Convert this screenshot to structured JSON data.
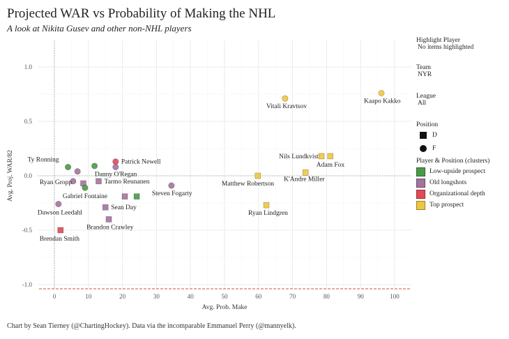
{
  "chart_data": {
    "type": "scatter",
    "title": "Projected WAR vs Probability of Making the NHL",
    "subtitle": "A look at Nikita Gusev and other non-NHL players",
    "xlabel": "Avg. Prob. Make",
    "ylabel": "Avg. Proj. WAR/82",
    "xlim": [
      -5,
      105
    ],
    "ylim": [
      -1.05,
      1.22
    ],
    "x_ticks": [
      0,
      10,
      20,
      30,
      40,
      50,
      60,
      70,
      80,
      90,
      100
    ],
    "x_tick_labels": [
      "0",
      "10",
      "20",
      "30",
      "40",
      "50",
      "60",
      "70",
      "80",
      "90",
      "100"
    ],
    "y_ticks": [
      1.0,
      0.5,
      0.0,
      -0.5,
      -1.0
    ],
    "y_tick_labels": [
      "1.0",
      "0.5",
      "0.0",
      "-0.5",
      "-1.0"
    ],
    "grid": true,
    "reference_lines": {
      "x": 0,
      "y": 0,
      "style": "dotted"
    },
    "legend_position": "right",
    "clusters": [
      {
        "name": "Low-upside prospect",
        "color": "#4a9a45"
      },
      {
        "name": "Old longshots",
        "color": "#a4739f"
      },
      {
        "name": "Organizational depth",
        "color": "#e04a55"
      },
      {
        "name": "Top prospect",
        "color": "#eec640"
      }
    ],
    "positions": [
      {
        "code": "D",
        "shape": "square"
      },
      {
        "code": "F",
        "shape": "circle"
      }
    ],
    "points": [
      {
        "label": "Ty Ronning",
        "x": 4,
        "y": 0.08,
        "position": "F",
        "cluster": "Low-upside prospect"
      },
      {
        "label": "",
        "x": 6.8,
        "y": 0.04,
        "position": "F",
        "cluster": "Old longshots"
      },
      {
        "label": "",
        "x": 11.8,
        "y": 0.09,
        "position": "F",
        "cluster": "Low-upside prospect"
      },
      {
        "label": "Patrick Newell",
        "x": 18,
        "y": 0.13,
        "position": "F",
        "cluster": "Organizational depth"
      },
      {
        "label": "Danny O'Regan",
        "x": 18,
        "y": 0.08,
        "position": "F",
        "cluster": "Old longshots"
      },
      {
        "label": "Ryan Gropp",
        "x": 5.5,
        "y": -0.05,
        "position": "F",
        "cluster": "Old longshots"
      },
      {
        "label": "",
        "x": 8.5,
        "y": -0.07,
        "position": "D",
        "cluster": "Old longshots"
      },
      {
        "label": "Gabriel Fontaine",
        "x": 9,
        "y": -0.11,
        "position": "F",
        "cluster": "Low-upside prospect"
      },
      {
        "label": "Tarmo Reunanen",
        "x": 13,
        "y": -0.05,
        "position": "D",
        "cluster": "Old longshots"
      },
      {
        "label": "",
        "x": 20.7,
        "y": -0.19,
        "position": "D",
        "cluster": "Old longshots"
      },
      {
        "label": "",
        "x": 24.2,
        "y": -0.19,
        "position": "D",
        "cluster": "Low-upside prospect"
      },
      {
        "label": "Steven Fogarty",
        "x": 34.4,
        "y": -0.09,
        "position": "F",
        "cluster": "Old longshots"
      },
      {
        "label": "Sean Day",
        "x": 15,
        "y": -0.29,
        "position": "D",
        "cluster": "Old longshots"
      },
      {
        "label": "Brandon Crawley",
        "x": 16,
        "y": -0.4,
        "position": "D",
        "cluster": "Old longshots"
      },
      {
        "label": "Dawson Leedahl",
        "x": 1.2,
        "y": -0.26,
        "position": "F",
        "cluster": "Old longshots"
      },
      {
        "label": "Brendan Smith",
        "x": 1.8,
        "y": -0.5,
        "position": "D",
        "cluster": "Organizational depth"
      },
      {
        "label": "Vitali Kravtsov",
        "x": 67.8,
        "y": 0.71,
        "position": "F",
        "cluster": "Top prospect"
      },
      {
        "label": "Kaapo Kakko",
        "x": 96.1,
        "y": 0.76,
        "position": "F",
        "cluster": "Top prospect"
      },
      {
        "label": "Nils Lundkvist",
        "x": 78.5,
        "y": 0.18,
        "position": "D",
        "cluster": "Top prospect"
      },
      {
        "label": "Adam Fox",
        "x": 81.1,
        "y": 0.18,
        "position": "D",
        "cluster": "Top prospect"
      },
      {
        "label": "Matthew Robertson",
        "x": 59.8,
        "y": 0.0,
        "position": "D",
        "cluster": "Top prospect"
      },
      {
        "label": "K'Andre Miller",
        "x": 73.8,
        "y": 0.03,
        "position": "D",
        "cluster": "Top prospect"
      },
      {
        "label": "Ryan Lindgren",
        "x": 62.3,
        "y": -0.27,
        "position": "D",
        "cluster": "Top prospect"
      }
    ]
  },
  "legend": {
    "highlight_title": "Highlight Player",
    "highlight_value": "No items highlighted",
    "team_title": "Team",
    "team_value": "NYR",
    "league_title": "League",
    "league_value": "All",
    "position_title": "Position",
    "position_items": [
      "D",
      "F"
    ],
    "cluster_title": "Player & Position (clusters)"
  },
  "caption": "Chart by Sean Tierney (@ChartingHockey). Data via the incomparable Emmanuel Perry (@mannyelk)."
}
